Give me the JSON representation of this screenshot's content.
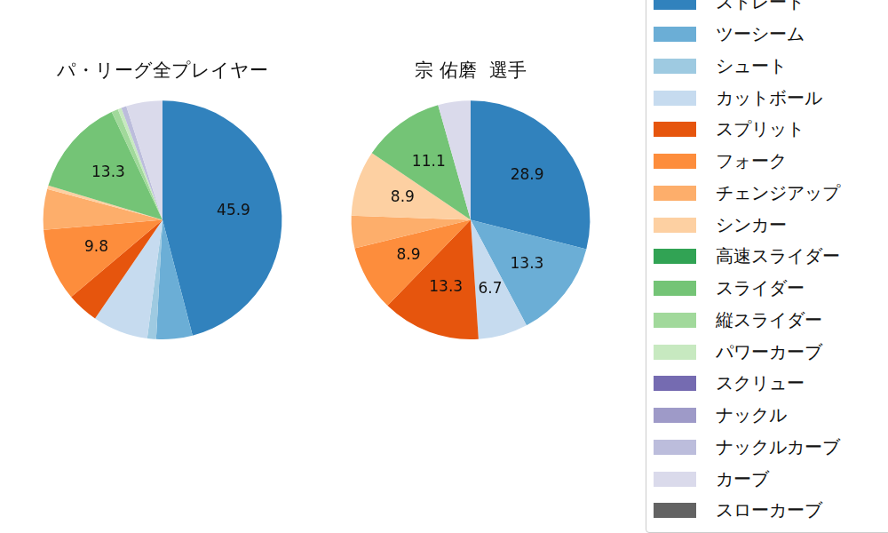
{
  "chart_data": [
    {
      "type": "pie",
      "title": "パ・リーグ全プレイヤー",
      "categories": [
        "ストレート",
        "ツーシーム",
        "シュート",
        "カットボール",
        "スプリット",
        "フォーク",
        "チェンジアップ",
        "シンカー",
        "高速スライダー",
        "スライダー",
        "縦スライダー",
        "パワーカーブ",
        "スクリュー",
        "ナックル",
        "ナックルカーブ",
        "カーブ",
        "スローカーブ"
      ],
      "values": [
        45.9,
        4.9,
        1.2,
        7.5,
        4.3,
        9.8,
        5.5,
        0.5,
        0,
        13.3,
        0.9,
        0.5,
        0,
        0,
        0.7,
        4.9,
        0
      ],
      "value_labels": [
        "45.9",
        null,
        null,
        null,
        null,
        "9.8",
        null,
        null,
        null,
        "13.3",
        null,
        null,
        null,
        null,
        null,
        null,
        null
      ],
      "data_labels": true,
      "colors": [
        "#3182bd",
        "#6baed6",
        "#9ecae1",
        "#c6dbef",
        "#e6550d",
        "#fd8d3c",
        "#fdae6b",
        "#fdd0a2",
        "#31a354",
        "#74c476",
        "#a1d99b",
        "#c7e9c0",
        "#756bb1",
        "#9e9ac8",
        "#bcbddc",
        "#dadaeb",
        "#636363"
      ]
    },
    {
      "type": "pie",
      "title": "宗 佑磨  選手",
      "categories": [
        "ストレート",
        "ツーシーム",
        "シュート",
        "カットボール",
        "スプリット",
        "フォーク",
        "チェンジアップ",
        "シンカー",
        "高速スライダー",
        "スライダー",
        "縦スライダー",
        "パワーカーブ",
        "スクリュー",
        "ナックル",
        "ナックルカーブ",
        "カーブ",
        "スローカーブ"
      ],
      "values": [
        28.9,
        13.3,
        0,
        6.7,
        13.3,
        8.9,
        4.4,
        8.9,
        0,
        11.1,
        0,
        0,
        0,
        0,
        0,
        4.4,
        0
      ],
      "value_labels": [
        "28.9",
        "13.3",
        null,
        "6.7",
        "13.3",
        "8.9",
        null,
        "8.9",
        null,
        "11.1",
        null,
        null,
        null,
        null,
        null,
        null,
        null
      ],
      "data_labels": true,
      "legend": "right",
      "colors": [
        "#3182bd",
        "#6baed6",
        "#9ecae1",
        "#c6dbef",
        "#e6550d",
        "#fd8d3c",
        "#fdae6b",
        "#fdd0a2",
        "#31a354",
        "#74c476",
        "#a1d99b",
        "#c7e9c0",
        "#756bb1",
        "#9e9ac8",
        "#bcbddc",
        "#dadaeb",
        "#636363"
      ]
    }
  ]
}
